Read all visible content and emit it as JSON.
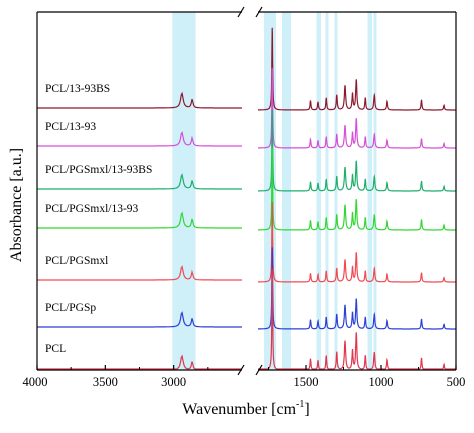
{
  "chart_data": {
    "type": "line",
    "xlabel": "Wavenumber [cm",
    "xlabel_sup": "-1",
    "xlabel_close": "]",
    "ylabel": "Absorbance [a.u.]",
    "x_axis_reversed": true,
    "x_axis_broken": true,
    "x_segments": [
      {
        "range": [
          4000,
          2500
        ],
        "ticks": [
          4000,
          3500,
          3000
        ]
      },
      {
        "range": [
          1820,
          500
        ],
        "ticks": [
          1500,
          1000,
          500
        ]
      }
    ],
    "tick_labels": [
      "4000",
      "3500",
      "3000",
      "1500",
      "1000",
      "500"
    ],
    "highlight_bands": [
      [
        3010,
        2840
      ],
      [
        1780,
        1700
      ],
      [
        1660,
        1600
      ],
      [
        1430,
        1400
      ],
      [
        1370,
        1350
      ],
      [
        1310,
        1290
      ],
      [
        1090,
        1060
      ],
      [
        1050,
        1030
      ]
    ],
    "highlight_color": "#cfeff9",
    "series": [
      {
        "name": "PCL/13-93BS",
        "color": "#8b1a2e"
      },
      {
        "name": "PCL/13-93",
        "color": "#d64fd6"
      },
      {
        "name": "PCL/PGSmxl/13-93BS",
        "color": "#1fae6a"
      },
      {
        "name": "PCL/PGSmxl/13-93",
        "color": "#33d633"
      },
      {
        "name": "PCL/PGSmxl",
        "color": "#f04a52"
      },
      {
        "name": "PCL/PGSp",
        "color": "#2c3fd6"
      },
      {
        "name": "PCL",
        "color": "#e0364e"
      }
    ],
    "spectrum_peaks": {
      "high": [
        [
          2940,
          0.55,
          22
        ],
        [
          2865,
          0.32,
          14
        ]
      ],
      "low": [
        [
          1725,
          3.2,
          6
        ],
        [
          1470,
          0.35,
          7
        ],
        [
          1420,
          0.3,
          7
        ],
        [
          1365,
          0.45,
          7
        ],
        [
          1295,
          0.55,
          8
        ],
        [
          1240,
          0.9,
          10
        ],
        [
          1190,
          0.6,
          8
        ],
        [
          1165,
          1.15,
          9
        ],
        [
          1105,
          0.45,
          7
        ],
        [
          1045,
          0.55,
          9
        ],
        [
          960,
          0.32,
          8
        ],
        [
          730,
          0.38,
          7
        ],
        [
          580,
          0.18,
          7
        ]
      ]
    },
    "grid": false
  }
}
